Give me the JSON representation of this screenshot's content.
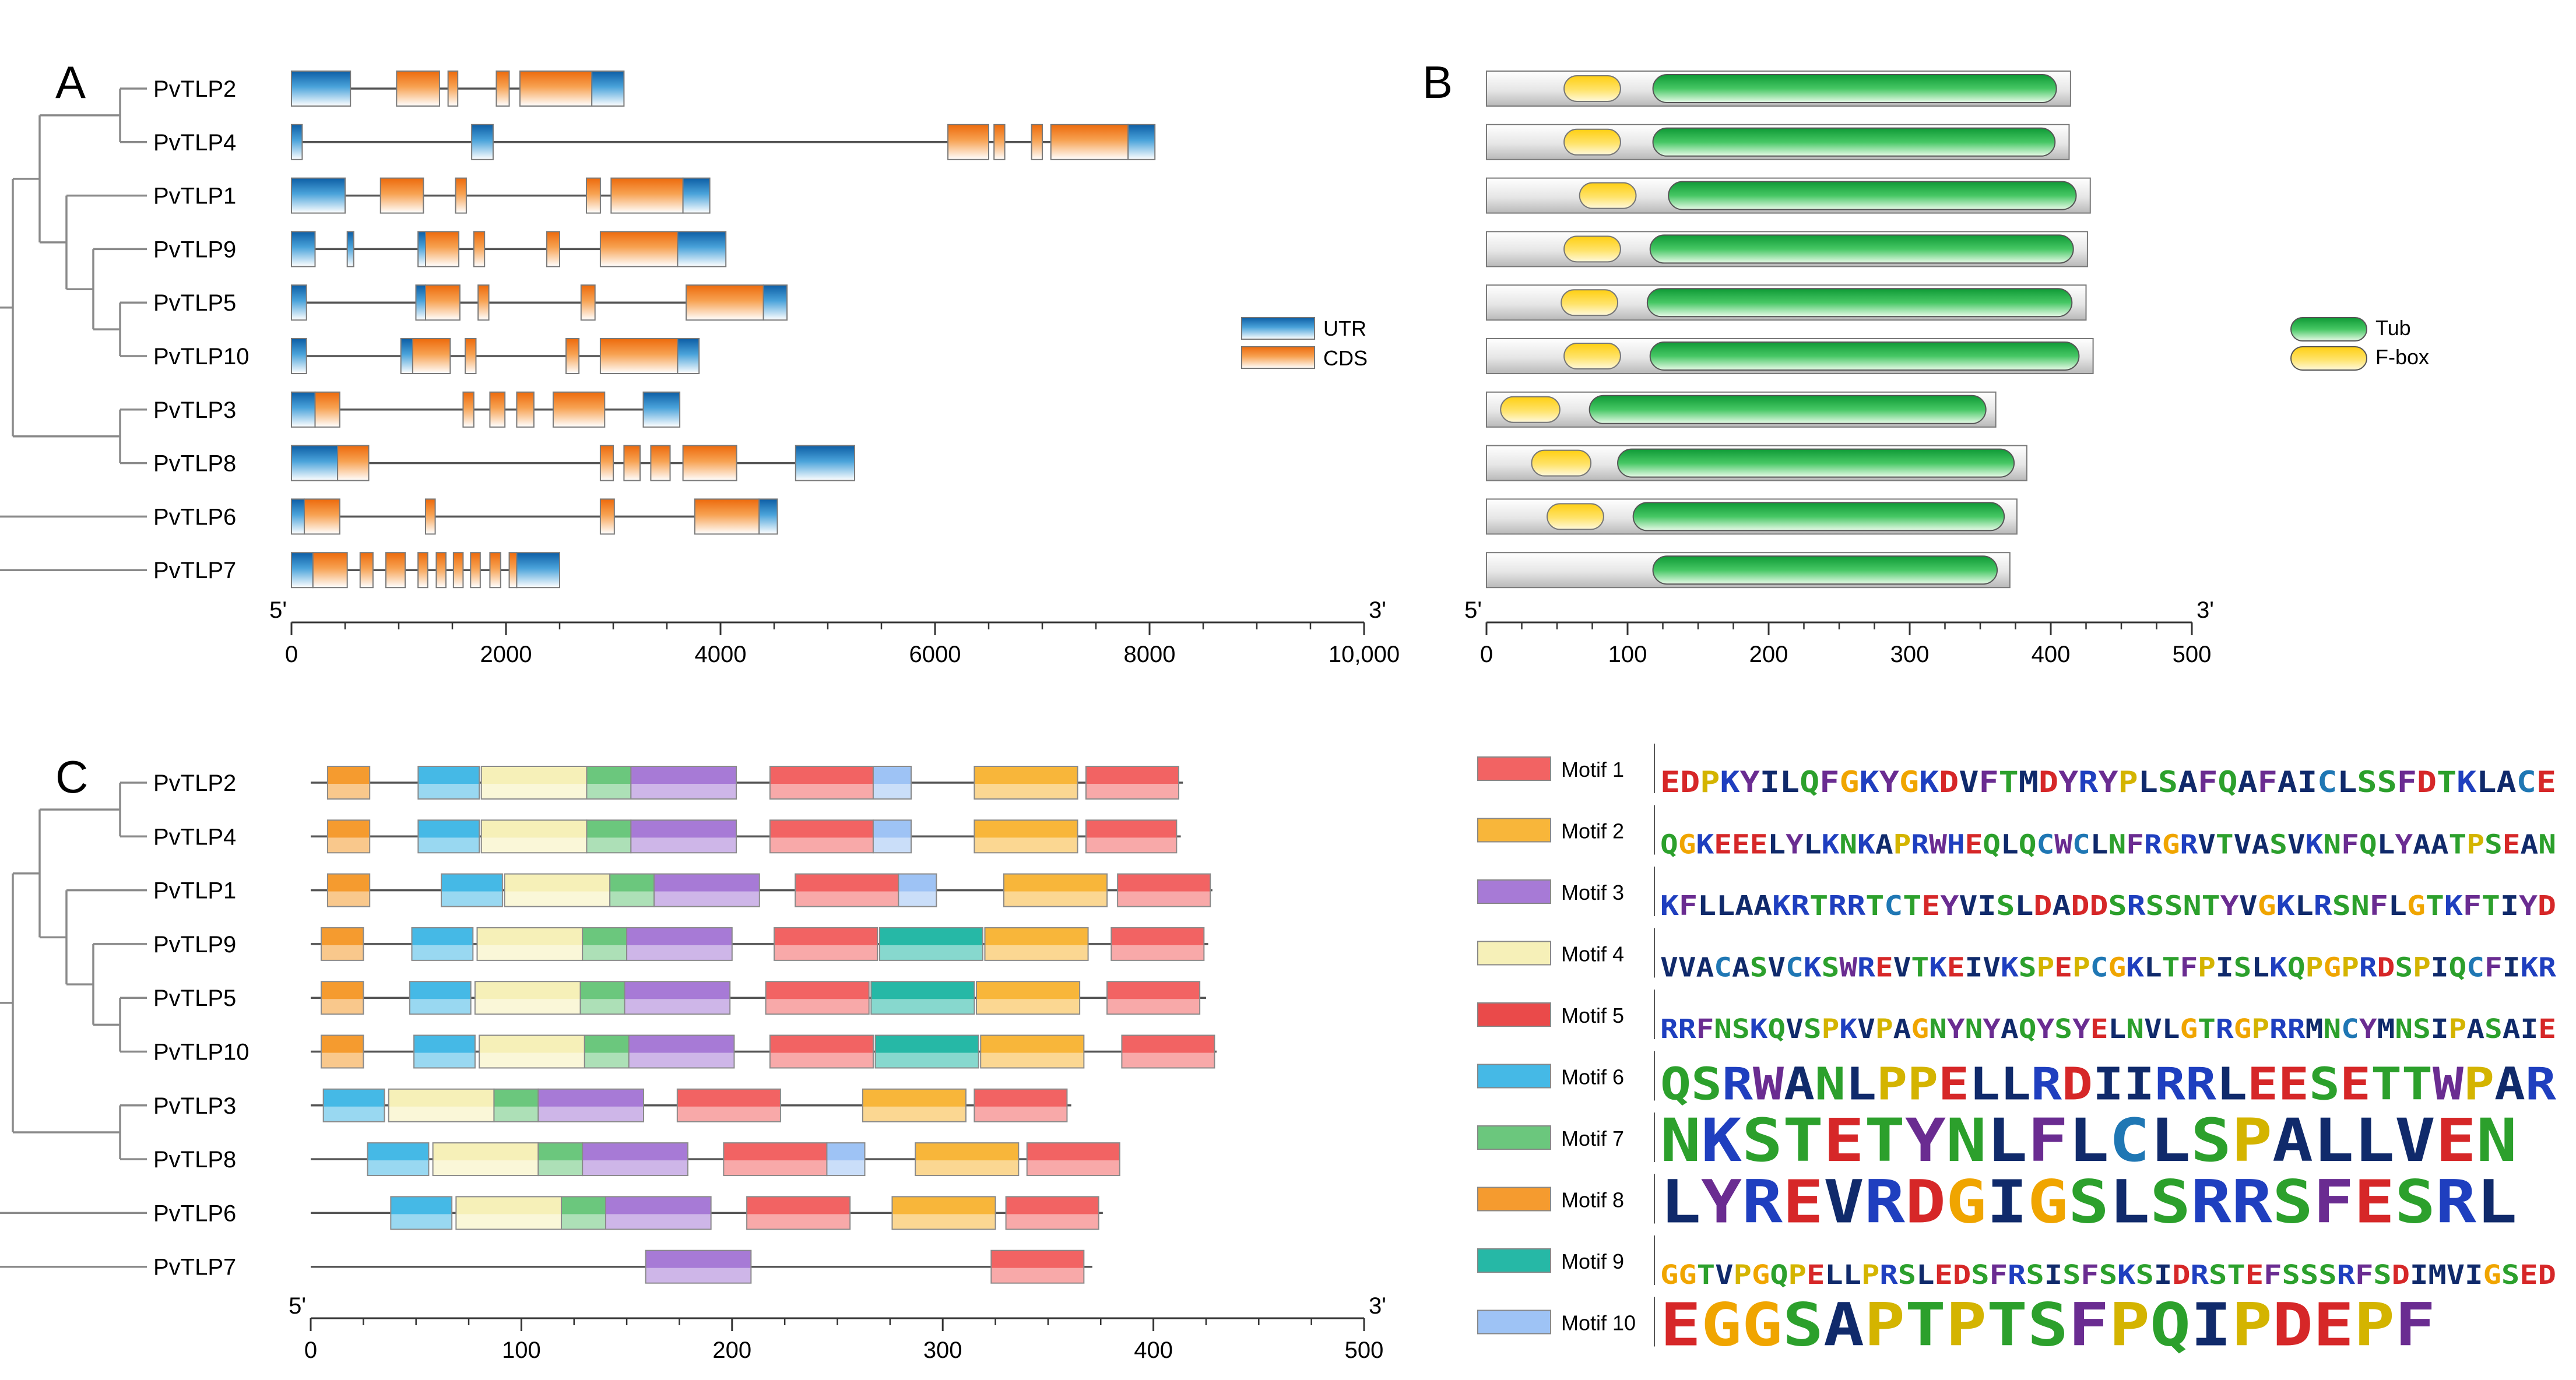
{
  "panels": {
    "A": "A",
    "B": "B",
    "C": "C"
  },
  "colors": {
    "utr": "#1565a8",
    "cds": "#ef7f1a",
    "tub": "#22b24c",
    "fbox": "#ffd21e",
    "motif": {
      "1": "#f26363",
      "2": "#f8b63a",
      "3": "#a77ad6",
      "4": "#f6f0b8",
      "5": "#ea4a4a",
      "6": "#45b9e6",
      "7": "#6bc77d",
      "8": "#f59b2f",
      "9": "#26b8a6",
      "10": "#9ec3f5"
    }
  },
  "genes": {
    "order": [
      "PvTLP2",
      "PvTLP4",
      "PvTLP1",
      "PvTLP9",
      "PvTLP5",
      "PvTLP10",
      "PvTLP3",
      "PvTLP8",
      "PvTLP6",
      "PvTLP7"
    ],
    "tree_structure": "((((PvTLP2,PvTLP4),(PvTLP1,(PvTLP9,(PvTLP5,PvTLP10)))),(PvTLP3,PvTLP8)),PvTLP6,PvTLP7)"
  },
  "gene_structure": {
    "axis_start_label": "5'",
    "axis_end_label": "3'",
    "axis_max": 10000,
    "ticks": [
      0,
      2000,
      4000,
      6000,
      8000,
      10000
    ],
    "tick_labels": [
      "0",
      "2000",
      "4000",
      "6000",
      "8000",
      "10,000"
    ],
    "legend": {
      "utr": "UTR",
      "cds": "CDS"
    },
    "structures": [
      {
        "gene": "PvTLP2",
        "length": 3100,
        "segments": [
          [
            "utr",
            0,
            550
          ],
          [
            "cds",
            980,
            1380
          ],
          [
            "cds",
            1460,
            1550
          ],
          [
            "cds",
            1910,
            2030
          ],
          [
            "cds",
            2130,
            2800
          ],
          [
            "utr",
            2800,
            3100
          ]
        ]
      },
      {
        "gene": "PvTLP4",
        "length": 8050,
        "segments": [
          [
            "utr",
            0,
            100
          ],
          [
            "utr",
            1680,
            1880
          ],
          [
            "cds",
            6120,
            6500
          ],
          [
            "cds",
            6550,
            6650
          ],
          [
            "cds",
            6900,
            7000
          ],
          [
            "cds",
            7080,
            7800
          ],
          [
            "utr",
            7800,
            8050
          ]
        ]
      },
      {
        "gene": "PvTLP1",
        "length": 3900,
        "segments": [
          [
            "utr",
            0,
            500
          ],
          [
            "cds",
            830,
            1230
          ],
          [
            "cds",
            1530,
            1630
          ],
          [
            "cds",
            2750,
            2880
          ],
          [
            "cds",
            2980,
            3650
          ],
          [
            "utr",
            3650,
            3900
          ]
        ]
      },
      {
        "gene": "PvTLP9",
        "length": 4050,
        "segments": [
          [
            "utr",
            0,
            220
          ],
          [
            "utr",
            520,
            580
          ],
          [
            "utr",
            1180,
            1250
          ],
          [
            "cds",
            1250,
            1560
          ],
          [
            "cds",
            1700,
            1800
          ],
          [
            "cds",
            2380,
            2500
          ],
          [
            "cds",
            2880,
            3600
          ],
          [
            "utr",
            3600,
            4050
          ]
        ]
      },
      {
        "gene": "PvTLP5",
        "length": 4620,
        "segments": [
          [
            "utr",
            0,
            140
          ],
          [
            "utr",
            1160,
            1250
          ],
          [
            "cds",
            1250,
            1570
          ],
          [
            "cds",
            1740,
            1840
          ],
          [
            "cds",
            2700,
            2830
          ],
          [
            "cds",
            3680,
            4400
          ],
          [
            "utr",
            4400,
            4620
          ]
        ]
      },
      {
        "gene": "PvTLP10",
        "length": 3800,
        "segments": [
          [
            "utr",
            0,
            140
          ],
          [
            "utr",
            1020,
            1130
          ],
          [
            "cds",
            1130,
            1480
          ],
          [
            "cds",
            1620,
            1720
          ],
          [
            "cds",
            2560,
            2680
          ],
          [
            "cds",
            2880,
            3600
          ],
          [
            "utr",
            3600,
            3800
          ]
        ]
      },
      {
        "gene": "PvTLP3",
        "length": 3620,
        "segments": [
          [
            "utr",
            0,
            220
          ],
          [
            "cds",
            220,
            450
          ],
          [
            "cds",
            1600,
            1700
          ],
          [
            "cds",
            1850,
            1990
          ],
          [
            "cds",
            2100,
            2260
          ],
          [
            "cds",
            2440,
            2920
          ],
          [
            "utr",
            3280,
            3620
          ]
        ]
      },
      {
        "gene": "PvTLP8",
        "length": 5250,
        "segments": [
          [
            "utr",
            0,
            430
          ],
          [
            "cds",
            430,
            720
          ],
          [
            "cds",
            2880,
            3000
          ],
          [
            "cds",
            3100,
            3250
          ],
          [
            "cds",
            3350,
            3530
          ],
          [
            "cds",
            3650,
            4150
          ],
          [
            "utr",
            4700,
            5250
          ]
        ]
      },
      {
        "gene": "PvTLP6",
        "length": 4530,
        "segments": [
          [
            "utr",
            0,
            120
          ],
          [
            "cds",
            120,
            450
          ],
          [
            "cds",
            1250,
            1340
          ],
          [
            "cds",
            2880,
            3010
          ],
          [
            "cds",
            3760,
            4360
          ],
          [
            "utr",
            4360,
            4530
          ]
        ]
      },
      {
        "gene": "PvTLP7",
        "length": 2500,
        "segments": [
          [
            "utr",
            0,
            200
          ],
          [
            "cds",
            200,
            520
          ],
          [
            "cds",
            640,
            760
          ],
          [
            "cds",
            880,
            1060
          ],
          [
            "cds",
            1180,
            1270
          ],
          [
            "cds",
            1350,
            1440
          ],
          [
            "cds",
            1510,
            1600
          ],
          [
            "cds",
            1670,
            1760
          ],
          [
            "cds",
            1850,
            1950
          ],
          [
            "cds",
            2030,
            2100
          ],
          [
            "utr",
            2100,
            2500
          ]
        ]
      }
    ]
  },
  "protein_domains": {
    "axis_start_label": "5'",
    "axis_end_label": "3'",
    "axis_max": 500,
    "ticks": [
      0,
      100,
      200,
      300,
      400,
      500
    ],
    "tick_labels": [
      "0",
      "100",
      "200",
      "300",
      "400",
      "500"
    ],
    "legend": {
      "tub": "Tub",
      "fbox": "F-box"
    },
    "proteins": [
      {
        "gene": "PvTLP2",
        "length": 414,
        "fbox": [
          55,
          95
        ],
        "tub": [
          118,
          404
        ]
      },
      {
        "gene": "PvTLP4",
        "length": 413,
        "fbox": [
          55,
          95
        ],
        "tub": [
          118,
          403
        ]
      },
      {
        "gene": "PvTLP1",
        "length": 428,
        "fbox": [
          66,
          106
        ],
        "tub": [
          129,
          418
        ]
      },
      {
        "gene": "PvTLP9",
        "length": 426,
        "fbox": [
          55,
          95
        ],
        "tub": [
          116,
          416
        ]
      },
      {
        "gene": "PvTLP5",
        "length": 425,
        "fbox": [
          53,
          93
        ],
        "tub": [
          114,
          415
        ]
      },
      {
        "gene": "PvTLP10",
        "length": 430,
        "fbox": [
          55,
          95
        ],
        "tub": [
          116,
          420
        ]
      },
      {
        "gene": "PvTLP3",
        "length": 361,
        "fbox": [
          10,
          52
        ],
        "tub": [
          73,
          354
        ]
      },
      {
        "gene": "PvTLP8",
        "length": 383,
        "fbox": [
          32,
          74
        ],
        "tub": [
          93,
          374
        ]
      },
      {
        "gene": "PvTLP6",
        "length": 376,
        "fbox": [
          43,
          83
        ],
        "tub": [
          104,
          367
        ]
      },
      {
        "gene": "PvTLP7",
        "length": 371,
        "fbox": null,
        "tub": [
          118,
          362
        ]
      }
    ]
  },
  "motif_layout": {
    "axis_start_label": "5'",
    "axis_end_label": "3'",
    "axis_max": 500,
    "ticks": [
      0,
      100,
      200,
      300,
      400,
      500
    ],
    "tick_labels": [
      "0",
      "100",
      "200",
      "300",
      "400",
      "500"
    ],
    "proteins": [
      {
        "gene": "PvTLP2",
        "length": 414,
        "motifs": [
          [
            "8",
            8,
            28
          ],
          [
            "6",
            51,
            80
          ],
          [
            "4",
            81,
            131
          ],
          [
            "7",
            131,
            152
          ],
          [
            "3",
            152,
            202
          ],
          [
            "1",
            218,
            267
          ],
          [
            "10",
            267,
            285
          ],
          [
            "2",
            315,
            364
          ],
          [
            "1",
            368,
            412
          ]
        ]
      },
      {
        "gene": "PvTLP4",
        "length": 413,
        "motifs": [
          [
            "8",
            8,
            28
          ],
          [
            "6",
            51,
            80
          ],
          [
            "4",
            81,
            131
          ],
          [
            "7",
            131,
            152
          ],
          [
            "3",
            152,
            202
          ],
          [
            "1",
            218,
            267
          ],
          [
            "10",
            267,
            285
          ],
          [
            "2",
            315,
            364
          ],
          [
            "1",
            368,
            411
          ]
        ]
      },
      {
        "gene": "PvTLP1",
        "length": 428,
        "motifs": [
          [
            "8",
            8,
            28
          ],
          [
            "6",
            62,
            91
          ],
          [
            "4",
            92,
            142
          ],
          [
            "7",
            142,
            163
          ],
          [
            "3",
            163,
            213
          ],
          [
            "1",
            230,
            279
          ],
          [
            "10",
            279,
            297
          ],
          [
            "2",
            329,
            378
          ],
          [
            "1",
            383,
            427
          ]
        ]
      },
      {
        "gene": "PvTLP9",
        "length": 426,
        "motifs": [
          [
            "8",
            5,
            25
          ],
          [
            "6",
            48,
            77
          ],
          [
            "4",
            79,
            129
          ],
          [
            "7",
            129,
            150
          ],
          [
            "3",
            150,
            200
          ],
          [
            "1",
            220,
            269
          ],
          [
            "9",
            270,
            319
          ],
          [
            "2",
            320,
            369
          ],
          [
            "1",
            380,
            424
          ]
        ]
      },
      {
        "gene": "PvTLP5",
        "length": 425,
        "motifs": [
          [
            "8",
            5,
            25
          ],
          [
            "6",
            47,
            76
          ],
          [
            "4",
            78,
            128
          ],
          [
            "7",
            128,
            149
          ],
          [
            "3",
            149,
            199
          ],
          [
            "1",
            216,
            265
          ],
          [
            "9",
            266,
            315
          ],
          [
            "2",
            316,
            365
          ],
          [
            "1",
            378,
            422
          ]
        ]
      },
      {
        "gene": "PvTLP10",
        "length": 430,
        "motifs": [
          [
            "8",
            5,
            25
          ],
          [
            "6",
            49,
            78
          ],
          [
            "4",
            80,
            130
          ],
          [
            "7",
            130,
            151
          ],
          [
            "3",
            151,
            201
          ],
          [
            "1",
            218,
            267
          ],
          [
            "9",
            268,
            317
          ],
          [
            "2",
            318,
            367
          ],
          [
            "1",
            385,
            429
          ]
        ]
      },
      {
        "gene": "PvTLP3",
        "length": 361,
        "motifs": [
          [
            "6",
            6,
            35
          ],
          [
            "4",
            37,
            87
          ],
          [
            "7",
            87,
            108
          ],
          [
            "3",
            108,
            158
          ],
          [
            "1",
            174,
            223
          ],
          [
            "2",
            262,
            311
          ],
          [
            "1",
            315,
            359
          ]
        ]
      },
      {
        "gene": "PvTLP8",
        "length": 383,
        "motifs": [
          [
            "6",
            27,
            56
          ],
          [
            "4",
            58,
            108
          ],
          [
            "7",
            108,
            129
          ],
          [
            "3",
            129,
            179
          ],
          [
            "1",
            196,
            245
          ],
          [
            "10",
            245,
            263
          ],
          [
            "2",
            287,
            336
          ],
          [
            "1",
            340,
            384
          ]
        ]
      },
      {
        "gene": "PvTLP6",
        "length": 376,
        "motifs": [
          [
            "6",
            38,
            67
          ],
          [
            "4",
            69,
            119
          ],
          [
            "7",
            119,
            140
          ],
          [
            "3",
            140,
            190
          ],
          [
            "1",
            207,
            256
          ],
          [
            "2",
            276,
            325
          ],
          [
            "1",
            330,
            374
          ]
        ]
      },
      {
        "gene": "PvTLP7",
        "length": 371,
        "motifs": [
          [
            "3",
            159,
            209
          ],
          [
            "1",
            323,
            367
          ]
        ]
      }
    ]
  },
  "motif_logos": [
    {
      "id": "1",
      "label": "Motif 1",
      "consensus": "EDPKYILQFGKYGKDVFTMDYRYPLSAFQAFAICLSSFDTKLACE"
    },
    {
      "id": "2",
      "label": "Motif 2",
      "consensus": "QGKEEELYLKNKAPRWHEQLQCWCLNFRGRVTVASVKNFQLYAATPSEAN"
    },
    {
      "id": "3",
      "label": "Motif 3",
      "consensus": "KFLLAAKRTRRTCTEYVISLDADDSRSSNTYVGKLRSNFLGTKFTIYD"
    },
    {
      "id": "4",
      "label": "Motif 4",
      "consensus": "VVACASVCKSWREVTKEIVKSPEPCGKLTFPISLKQPGPRDSPIQCFIKR"
    },
    {
      "id": "5",
      "label": "Motif 5",
      "consensus": "RRFNSKQVSPKVPAGNYNYAQYSYELNVLGTRGPRRMNCYMNSIPASAIE"
    },
    {
      "id": "6",
      "label": "Motif 6",
      "consensus": "QSRWANLPPELLRDIIRRLEESETTWPAR"
    },
    {
      "id": "7",
      "label": "Motif 7",
      "consensus": "NKSTETYNLFLCLSPALLVEN"
    },
    {
      "id": "8",
      "label": "Motif 8",
      "consensus": "LYREVRDGIGSLSRRSFESRL"
    },
    {
      "id": "9",
      "label": "Motif 9",
      "consensus": "GGTVPGQPELLPRSLEDSFRSISFSKSIDRSTEFSSSRFSDIMVIGSED"
    },
    {
      "id": "10",
      "label": "Motif 10",
      "consensus": "EGGSAPTPTSFPQIPDEPF"
    }
  ]
}
